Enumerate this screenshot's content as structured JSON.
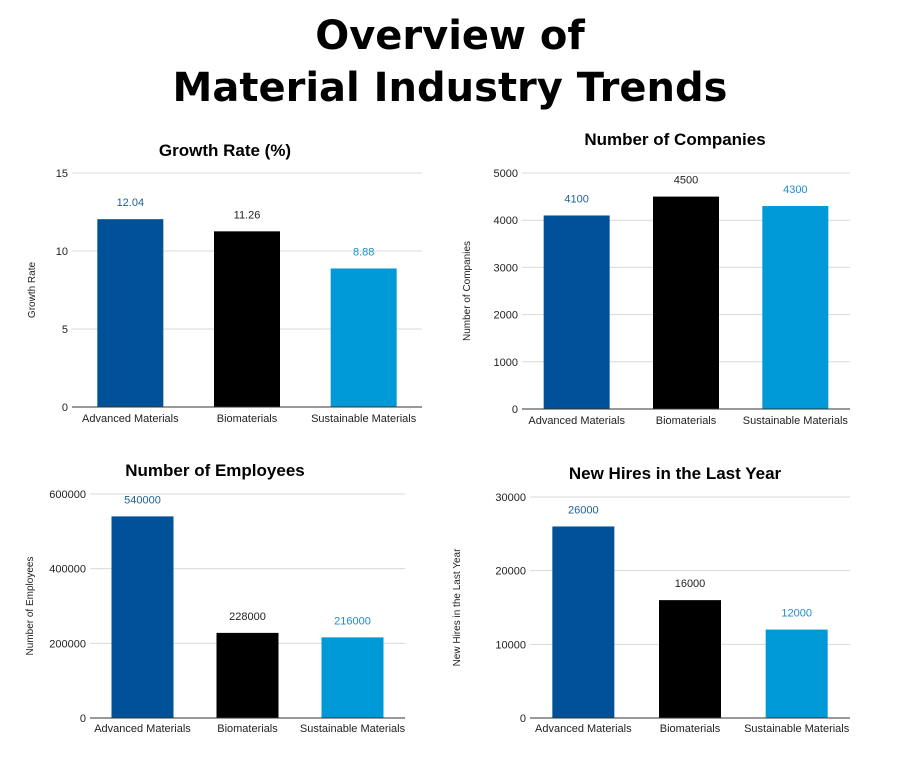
{
  "page": {
    "title_line1": "Overview of",
    "title_line2": "Material Industry Trends"
  },
  "colors": {
    "advanced": "#005197",
    "bio": "#000000",
    "sustainable": "#0099d8"
  },
  "chart_data": [
    {
      "type": "bar",
      "title": "Growth Rate (%)",
      "ylabel": "Growth Rate",
      "categories": [
        "Advanced Materials",
        "Biomaterials",
        "Sustainable Materials"
      ],
      "values": [
        12.04,
        11.26,
        8.88
      ],
      "value_labels": [
        "12.04",
        "11.26",
        "8.88"
      ],
      "ylim": [
        0,
        15
      ],
      "yticks": [
        0,
        5,
        10,
        15
      ],
      "ytick_labels": [
        "0",
        "5",
        "10",
        "15"
      ],
      "colors": [
        "#005197",
        "#000000",
        "#0099d8"
      ],
      "label_colors": [
        "#1f5f9a",
        "#222222",
        "#1a8fc9"
      ],
      "grid": true,
      "legend": "none"
    },
    {
      "type": "bar",
      "title": "Number of Companies",
      "ylabel": "Number of Companies",
      "categories": [
        "Advanced Materials",
        "Biomaterials",
        "Sustainable Materials"
      ],
      "values": [
        4100,
        4500,
        4300
      ],
      "value_labels": [
        "4100",
        "4500",
        "4300"
      ],
      "ylim": [
        0,
        5000
      ],
      "yticks": [
        0,
        1000,
        2000,
        3000,
        4000,
        5000
      ],
      "ytick_labels": [
        "0",
        "1000",
        "2000",
        "3000",
        "4000",
        "5000"
      ],
      "colors": [
        "#005197",
        "#000000",
        "#0099d8"
      ],
      "label_colors": [
        "#1f5f9a",
        "#222222",
        "#1a8fc9"
      ],
      "grid": true,
      "legend": "none"
    },
    {
      "type": "bar",
      "title": "Number of Employees",
      "ylabel": "Number of Employees",
      "categories": [
        "Advanced Materials",
        "Biomaterials",
        "Sustainable Materials"
      ],
      "values": [
        540000,
        228000,
        216000
      ],
      "value_labels": [
        "540000",
        "228000",
        "216000"
      ],
      "ylim": [
        0,
        600000
      ],
      "yticks": [
        0,
        200000,
        400000,
        600000
      ],
      "ytick_labels": [
        "0",
        "200000",
        "400000",
        "600000"
      ],
      "colors": [
        "#005197",
        "#000000",
        "#0099d8"
      ],
      "label_colors": [
        "#1f5f9a",
        "#222222",
        "#1a8fc9"
      ],
      "grid": true,
      "legend": "none"
    },
    {
      "type": "bar",
      "title": "New Hires in the Last Year",
      "ylabel": "New Hires in the Last Year",
      "categories": [
        "Advanced Materials",
        "Biomaterials",
        "Sustainable Materials"
      ],
      "values": [
        26000,
        16000,
        12000
      ],
      "value_labels": [
        "26000",
        "16000",
        "12000"
      ],
      "ylim": [
        0,
        30000
      ],
      "yticks": [
        0,
        10000,
        20000,
        30000
      ],
      "ytick_labels": [
        "0",
        "10000",
        "20000",
        "30000"
      ],
      "colors": [
        "#005197",
        "#000000",
        "#0099d8"
      ],
      "label_colors": [
        "#1f5f9a",
        "#222222",
        "#1a8fc9"
      ],
      "grid": true,
      "legend": "none"
    }
  ]
}
